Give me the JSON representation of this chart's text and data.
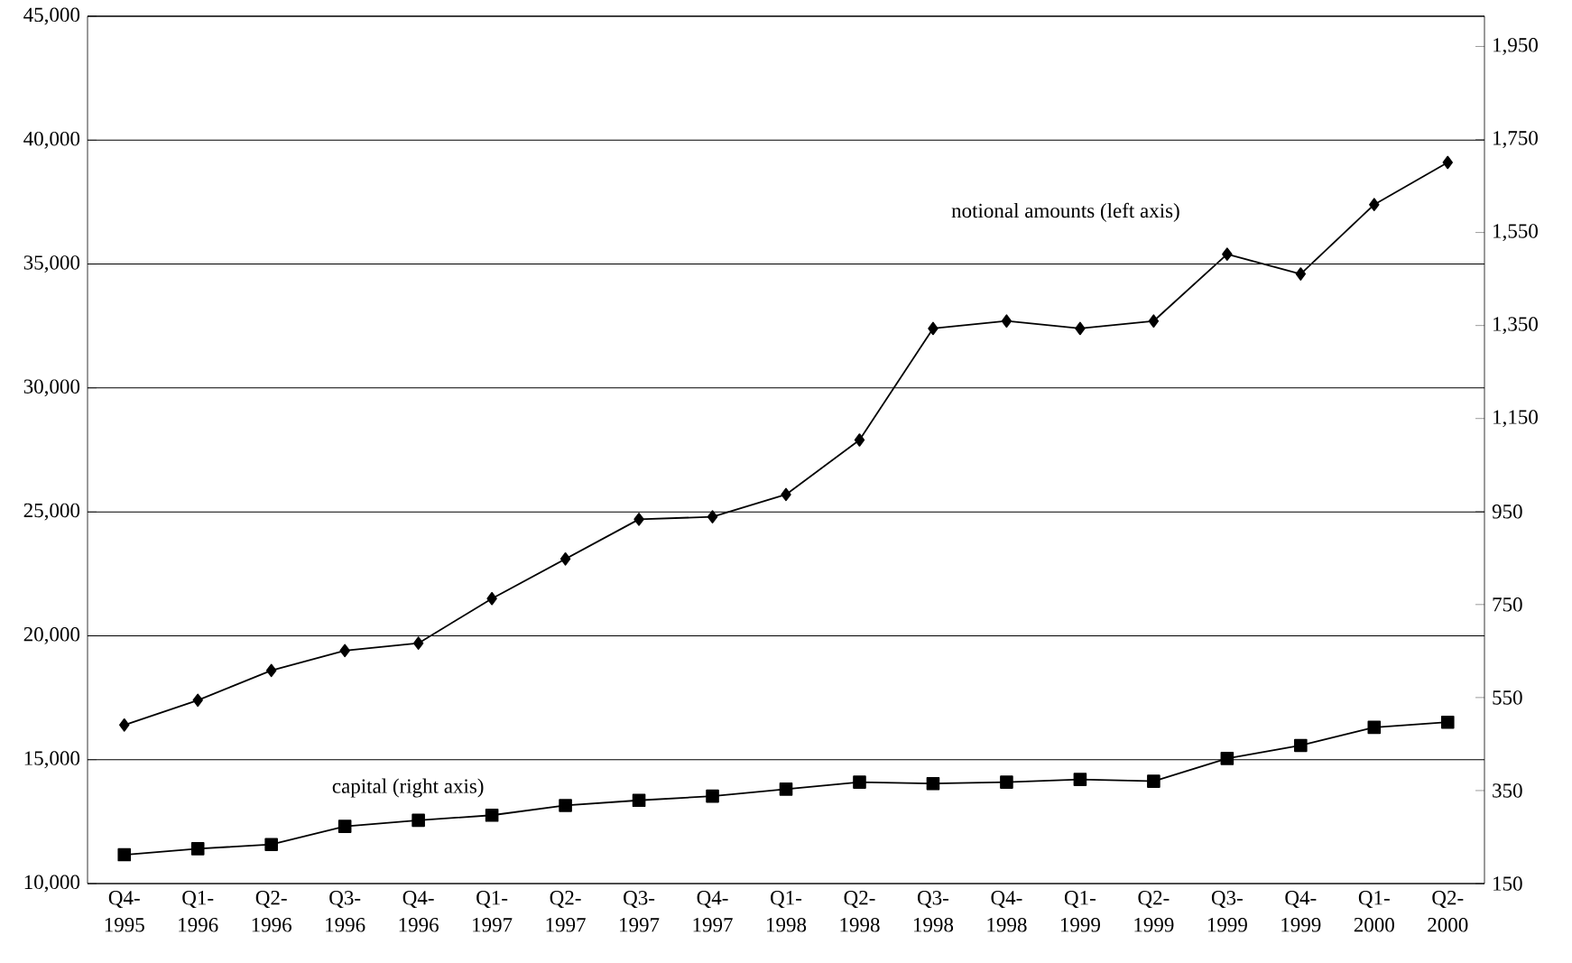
{
  "chart_data": {
    "type": "line",
    "categories": [
      "Q4-1995",
      "Q1-1996",
      "Q2-1996",
      "Q3-1996",
      "Q4-1996",
      "Q1-1997",
      "Q2-1997",
      "Q3-1997",
      "Q4-1997",
      "Q1-1998",
      "Q2-1998",
      "Q3-1998",
      "Q4-1998",
      "Q1-1999",
      "Q2-1999",
      "Q3-1999",
      "Q4-1999",
      "Q1-2000",
      "Q2-2000"
    ],
    "series": [
      {
        "name": "notional amounts (left axis)",
        "color": "#000000",
        "marker": "diamond",
        "values": [
          16400,
          17400,
          18600,
          19400,
          19700,
          21500,
          23100,
          24700,
          24800,
          25700,
          27900,
          32400,
          32700,
          32400,
          32700,
          35400,
          34600,
          37400,
          39100
        ]
      },
      {
        "name": "capital (right axis)",
        "color": "#000000",
        "marker": "square",
        "axis": "y2",
        "values": [
          212,
          225,
          234,
          273,
          286,
          297,
          318,
          329,
          338,
          353,
          368,
          365,
          368,
          374,
          370,
          419,
          447,
          486,
          497
        ]
      }
    ],
    "ylim": [
      10000,
      45000
    ],
    "yticks": [
      {
        "value": 10000,
        "label": "10,000"
      },
      {
        "value": 15000,
        "label": "15,000"
      },
      {
        "value": 20000,
        "label": "20,000"
      },
      {
        "value": 25000,
        "label": "25,000"
      },
      {
        "value": 30000,
        "label": "30,000"
      },
      {
        "value": 35000,
        "label": "35,000"
      },
      {
        "value": 40000,
        "label": "40,000"
      },
      {
        "value": 45000,
        "label": "45,000"
      }
    ],
    "y2lim": [
      150,
      2015
    ],
    "y2ticks": [
      150,
      350,
      550,
      750,
      950,
      {
        "value": 1150,
        "label": "1,150"
      },
      {
        "value": 1350,
        "label": "1,350"
      },
      {
        "value": 1550,
        "label": "1,550"
      },
      {
        "value": 1750,
        "label": "1,750"
      },
      {
        "value": 1950,
        "label": "1,950"
      }
    ],
    "grid": "y",
    "line_style": "solid"
  }
}
